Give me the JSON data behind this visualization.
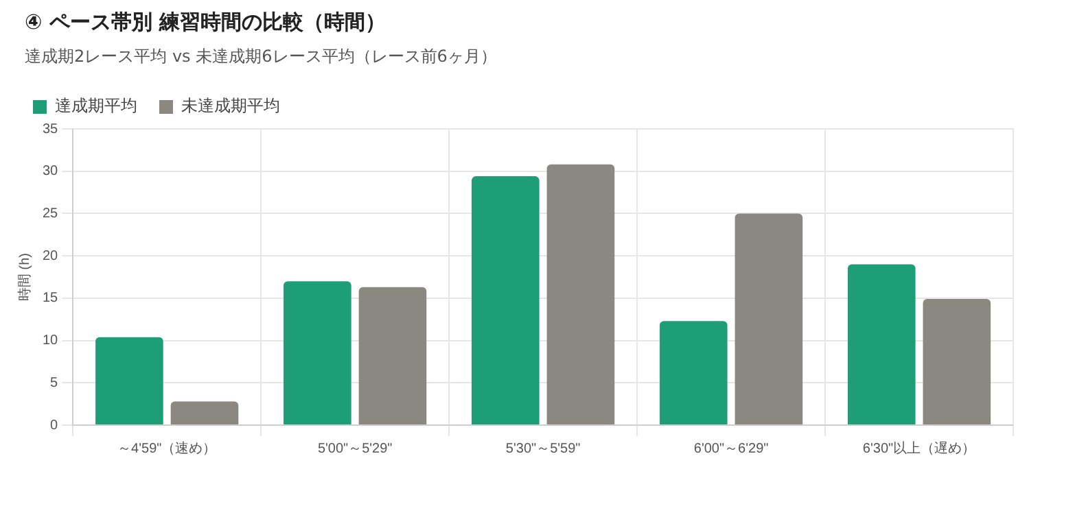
{
  "chart_data": {
    "type": "bar",
    "title": "④ ペース帯別 練習時間の比較（時間）",
    "subtitle": "達成期2レース平均 vs 未達成期6レース平均（レース前6ヶ月）",
    "ylabel": "時間 (h)",
    "categories": [
      "～4'59\"（速め）",
      "5'00\"～5'29\"",
      "5'30\"～5'59\"",
      "6'00\"～6'29\"",
      "6'30\"以上（遅め）"
    ],
    "series": [
      {
        "name": "達成期平均",
        "color": "#1e9e76",
        "values": [
          10.4,
          17,
          29.4,
          12.3,
          19
        ]
      },
      {
        "name": "未達成期平均",
        "color": "#8a8880",
        "values": [
          2.8,
          16.3,
          30.8,
          25,
          14.9
        ]
      }
    ],
    "ylim": [
      0,
      35
    ],
    "yticks": [
      0,
      5,
      10,
      15,
      20,
      25,
      30,
      35
    ],
    "grid": true,
    "legend": "top left"
  }
}
